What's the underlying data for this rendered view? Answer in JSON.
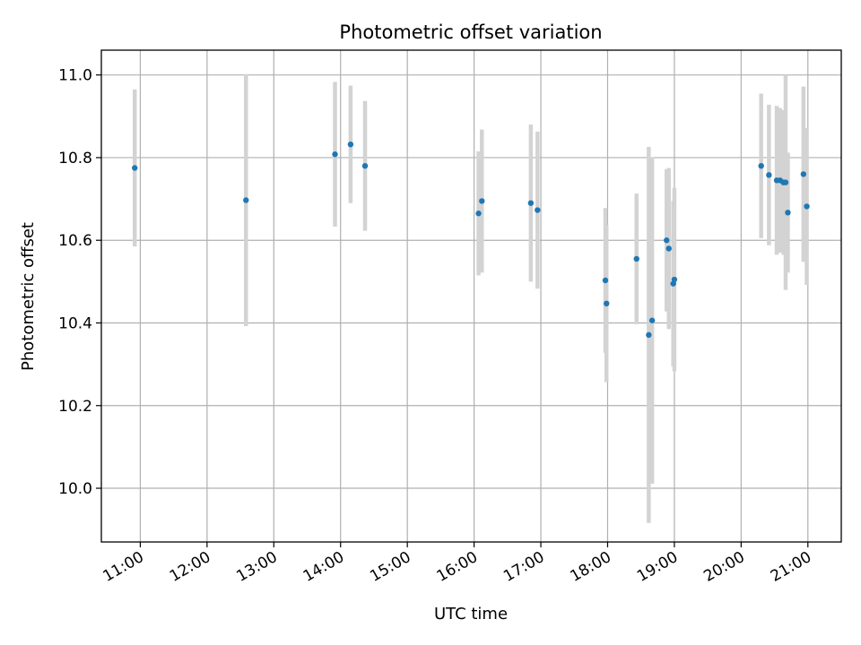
{
  "chart_data": {
    "type": "scatter",
    "title": "Photometric offset variation",
    "xlabel": "UTC time",
    "ylabel": "Photometric offset",
    "x_ticks": [
      "11:00",
      "12:00",
      "13:00",
      "14:00",
      "15:00",
      "16:00",
      "17:00",
      "18:00",
      "19:00",
      "20:00",
      "21:00"
    ],
    "y_ticks": [
      "10.0",
      "10.2",
      "10.4",
      "10.6",
      "10.8",
      "11.0"
    ],
    "xlim": [
      "10:25",
      "21:30"
    ],
    "ylim": [
      9.87,
      11.06
    ],
    "grid": true,
    "colors": {
      "points": "#1f77b4",
      "errorbars": "#d3d3d3",
      "grid": "#b0b0b0"
    },
    "points": [
      {
        "x": "10:55",
        "y": 10.775,
        "err": 0.19
      },
      {
        "x": "12:35",
        "y": 10.697,
        "err": 0.305
      },
      {
        "x": "13:55",
        "y": 10.808,
        "err": 0.175
      },
      {
        "x": "14:09",
        "y": 10.832,
        "err": 0.142
      },
      {
        "x": "14:22",
        "y": 10.78,
        "err": 0.157
      },
      {
        "x": "16:04",
        "y": 10.665,
        "err": 0.15
      },
      {
        "x": "16:07",
        "y": 10.695,
        "err": 0.173
      },
      {
        "x": "16:51",
        "y": 10.69,
        "err": 0.19
      },
      {
        "x": "16:57",
        "y": 10.673,
        "err": 0.19
      },
      {
        "x": "17:58",
        "y": 10.503,
        "err": 0.175
      },
      {
        "x": "17:59",
        "y": 10.447,
        "err": 0.19
      },
      {
        "x": "18:26",
        "y": 10.555,
        "err": 0.158
      },
      {
        "x": "18:37",
        "y": 10.371,
        "err": 0.455
      },
      {
        "x": "18:40",
        "y": 10.406,
        "err": 0.395
      },
      {
        "x": "18:53",
        "y": 10.6,
        "err": 0.172
      },
      {
        "x": "18:55",
        "y": 10.58,
        "err": 0.195
      },
      {
        "x": "18:59",
        "y": 10.495,
        "err": 0.2
      },
      {
        "x": "19:00",
        "y": 10.505,
        "err": 0.222
      },
      {
        "x": "20:18",
        "y": 10.78,
        "err": 0.175
      },
      {
        "x": "20:25",
        "y": 10.758,
        "err": 0.17
      },
      {
        "x": "20:32",
        "y": 10.745,
        "err": 0.18
      },
      {
        "x": "20:35",
        "y": 10.745,
        "err": 0.175
      },
      {
        "x": "20:38",
        "y": 10.74,
        "err": 0.175
      },
      {
        "x": "20:40",
        "y": 10.74,
        "err": 0.26
      },
      {
        "x": "20:42",
        "y": 10.667,
        "err": 0.145
      },
      {
        "x": "20:56",
        "y": 10.76,
        "err": 0.212
      },
      {
        "x": "20:59",
        "y": 10.682,
        "err": 0.19
      }
    ]
  }
}
